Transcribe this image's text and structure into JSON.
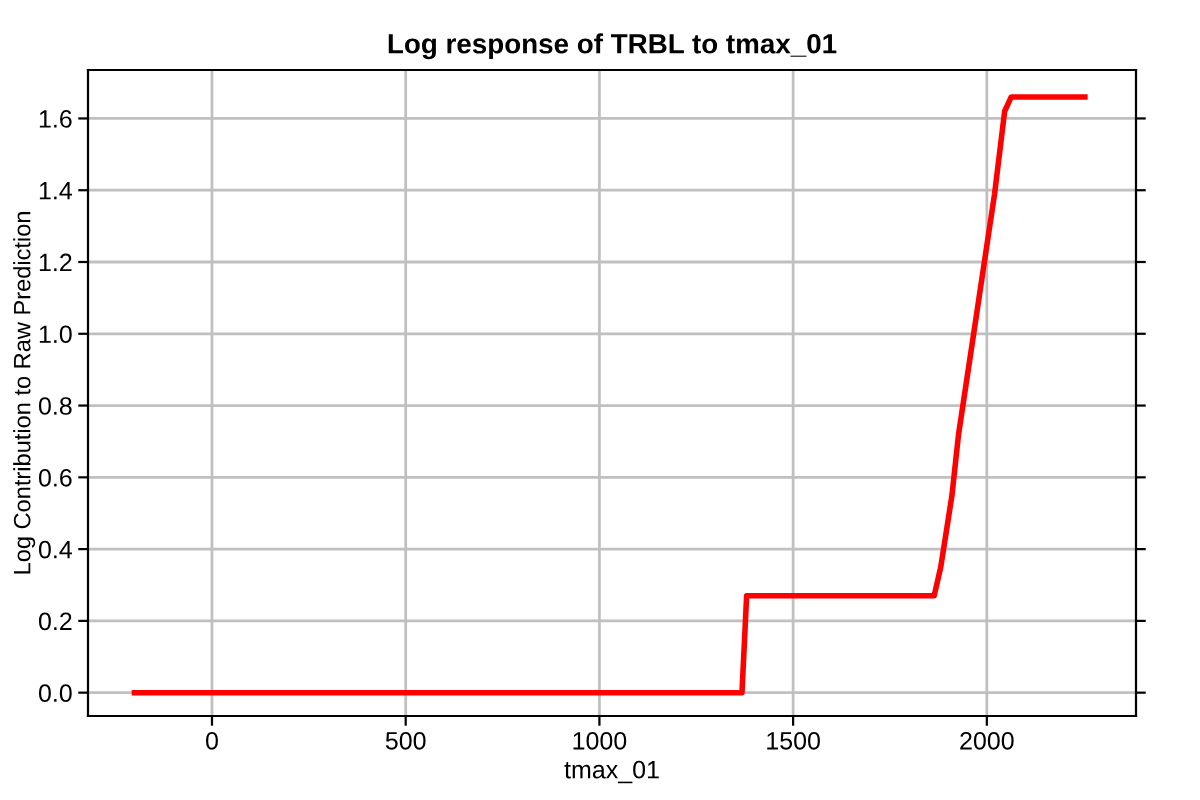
{
  "chart_data": {
    "type": "line",
    "title": "Log response of TRBL to tmax_01",
    "xlabel": "tmax_01",
    "ylabel": "Log Contribution to Raw Prediction",
    "series": [
      {
        "color": "#ff0000",
        "x": [
          -200,
          1368,
          1380,
          1864,
          1881,
          1910,
          1927,
          1966,
          1995,
          2020,
          2046,
          2063,
          2253
        ],
        "values": [
          0,
          0,
          0.27,
          0.27,
          0.35,
          0.55,
          0.72,
          1.0,
          1.21,
          1.39,
          1.62,
          1.66,
          1.66
        ]
      }
    ],
    "xlim": [
      -320,
      2385
    ],
    "xticks": [
      0,
      500,
      1000,
      1500,
      2000
    ],
    "ylim": [
      -0.065,
      1.735
    ],
    "yticks": [
      {
        "value": 0,
        "label": "0.0"
      },
      {
        "value": 0.2,
        "label": "0.2"
      },
      {
        "value": 0.4,
        "label": "0.4"
      },
      {
        "value": 0.6,
        "label": "0.6"
      },
      {
        "value": 0.8,
        "label": "0.8"
      },
      {
        "value": 1.0,
        "label": "1.0"
      },
      {
        "value": 1.2,
        "label": "1.2"
      },
      {
        "value": 1.4,
        "label": "1.4"
      },
      {
        "value": 1.6,
        "label": "1.6"
      }
    ],
    "grid": true,
    "line_style": "solid"
  }
}
